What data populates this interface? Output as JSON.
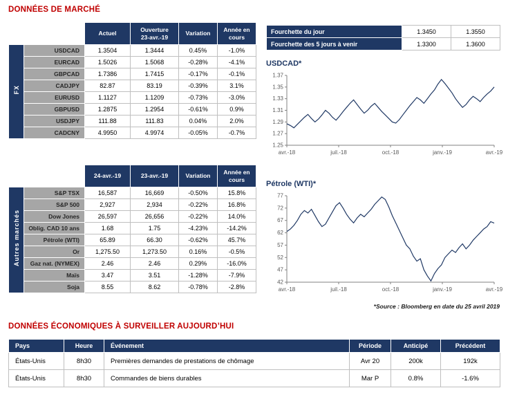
{
  "page": {
    "title_market": "DONNÉES DE MARCHÉ",
    "title_econ": "DONNÉES ÉCONOMIQUES À SURVEILLER AUJOURD’HUI",
    "source_note": "*Source : Bloomberg en date du  25 avril 2019"
  },
  "colors": {
    "positive": "#00A14B",
    "negative": "#FF0000",
    "header_navy": "#1F3864",
    "title_red": "#C00000",
    "label_gray": "#A6A6A6",
    "chart_line": "#1F3864"
  },
  "fx_table": {
    "group_label": "FX",
    "headers": [
      "Actuel",
      "Ouverture\n23-avr.-19",
      "Variation",
      "Année en\ncours"
    ],
    "rows": [
      {
        "label": "USDCAD",
        "actual": "1.3504",
        "open": "1.3444",
        "variation": "0.45%",
        "ytd": "-1.0%"
      },
      {
        "label": "EURCAD",
        "actual": "1.5026",
        "open": "1.5068",
        "variation": "-0.28%",
        "ytd": "-4.1%"
      },
      {
        "label": "GBPCAD",
        "actual": "1.7386",
        "open": "1.7415",
        "variation": "-0.17%",
        "ytd": "-0.1%"
      },
      {
        "label": "CADJPY",
        "actual": "82.87",
        "open": "83.19",
        "variation": "-0.39%",
        "ytd": "3.1%"
      },
      {
        "label": "EURUSD",
        "actual": "1.1127",
        "open": "1.1209",
        "variation": "-0.73%",
        "ytd": "-3.0%"
      },
      {
        "label": "GBPUSD",
        "actual": "1.2875",
        "open": "1.2954",
        "variation": "-0.61%",
        "ytd": "0.9%"
      },
      {
        "label": "USDJPY",
        "actual": "111.88",
        "open": "111.83",
        "variation": "0.04%",
        "ytd": "2.0%"
      },
      {
        "label": "CADCNY",
        "actual": "4.9950",
        "open": "4.9974",
        "variation": "-0.05%",
        "ytd": "-0.7%"
      }
    ]
  },
  "ranges": [
    {
      "label": "Fourchette du jour",
      "low": "1.3450",
      "high": "1.3550"
    },
    {
      "label": "Fourchette des 5 jours à venir",
      "low": "1.3300",
      "high": "1.3600"
    }
  ],
  "markets_table": {
    "group_label": "Autres marchés",
    "headers": [
      "24-avr.-19",
      "23-avr.-19",
      "Variation",
      "Année en\ncours"
    ],
    "rows": [
      {
        "label": "S&P TSX",
        "actual": "16,587",
        "open": "16,669",
        "variation": "-0.50%",
        "ytd": "15.8%"
      },
      {
        "label": "S&P 500",
        "actual": "2,927",
        "open": "2,934",
        "variation": "-0.22%",
        "ytd": "16.8%"
      },
      {
        "label": "Dow Jones",
        "actual": "26,597",
        "open": "26,656",
        "variation": "-0.22%",
        "ytd": "14.0%"
      },
      {
        "label": "Oblig. CAD 10 ans",
        "actual": "1.68",
        "open": "1.75",
        "variation": "-4.23%",
        "ytd": "-14.2%"
      },
      {
        "label": "Pétrole (WTI)",
        "actual": "65.89",
        "open": "66.30",
        "variation": "-0.62%",
        "ytd": "45.7%"
      },
      {
        "label": "Or",
        "actual": "1,275.50",
        "open": "1,273.50",
        "variation": "0.16%",
        "ytd": "-0.5%"
      },
      {
        "label": "Gaz nat. (NYMEX)",
        "actual": "2.46",
        "open": "2.46",
        "variation": "0.29%",
        "ytd": "-16.0%"
      },
      {
        "label": "Maïs",
        "actual": "3.47",
        "open": "3.51",
        "variation": "-1.28%",
        "ytd": "-7.9%"
      },
      {
        "label": "Soja",
        "actual": "8.55",
        "open": "8.62",
        "variation": "-0.78%",
        "ytd": "-2.8%"
      }
    ]
  },
  "econ_table": {
    "headers": [
      "Pays",
      "Heure",
      "Événement",
      "Période",
      "Anticipé",
      "Précédent"
    ],
    "rows": [
      [
        "États-Unis",
        "8h30",
        "Premières demandes de prestations de chômage",
        "Avr 20",
        "200k",
        "192k"
      ],
      [
        "États-Unis",
        "8h30",
        "Commandes de biens durables",
        "Mar P",
        "0.8%",
        "-1.6%"
      ]
    ]
  },
  "chart_data": [
    {
      "type": "line",
      "title": "USDCAD*",
      "xlabel": "",
      "ylabel": "",
      "grid": false,
      "legend": "none",
      "x_ticks": [
        "avr.-18",
        "juil.-18",
        "oct.-18",
        "janv.-19",
        "avr.-19"
      ],
      "y_ticks": [
        1.25,
        1.27,
        1.29,
        1.31,
        1.33,
        1.35,
        1.37
      ],
      "ylim": [
        1.25,
        1.37
      ],
      "values": [
        1.287,
        1.284,
        1.28,
        1.286,
        1.292,
        1.298,
        1.303,
        1.296,
        1.29,
        1.295,
        1.302,
        1.31,
        1.305,
        1.298,
        1.293,
        1.3,
        1.308,
        1.315,
        1.322,
        1.328,
        1.32,
        1.312,
        1.305,
        1.31,
        1.317,
        1.322,
        1.315,
        1.308,
        1.302,
        1.296,
        1.29,
        1.288,
        1.294,
        1.302,
        1.31,
        1.318,
        1.325,
        1.332,
        1.328,
        1.322,
        1.33,
        1.338,
        1.345,
        1.355,
        1.363,
        1.356,
        1.348,
        1.34,
        1.33,
        1.322,
        1.315,
        1.32,
        1.328,
        1.334,
        1.33,
        1.325,
        1.332,
        1.338,
        1.343,
        1.35
      ]
    },
    {
      "type": "line",
      "title": "Pétrole (WTI)*",
      "xlabel": "",
      "ylabel": "",
      "grid": false,
      "legend": "none",
      "x_ticks": [
        "avr.-18",
        "juil.-18",
        "oct.-18",
        "janv.-19",
        "avr.-19"
      ],
      "y_ticks": [
        42,
        47,
        52,
        57,
        62,
        67,
        72,
        77
      ],
      "ylim": [
        42,
        77
      ],
      "values": [
        62.5,
        63.5,
        65.0,
        67.0,
        69.5,
        71.0,
        70.0,
        71.5,
        69.0,
        66.5,
        64.5,
        65.5,
        68.0,
        70.5,
        73.0,
        74.2,
        72.0,
        69.5,
        67.5,
        66.0,
        68.0,
        69.5,
        68.5,
        70.0,
        71.5,
        73.5,
        75.0,
        76.5,
        75.5,
        72.5,
        69.0,
        66.0,
        63.0,
        60.0,
        57.0,
        55.5,
        52.5,
        50.5,
        51.5,
        47.0,
        44.5,
        42.5,
        45.5,
        47.5,
        49.0,
        52.0,
        53.5,
        55.0,
        54.0,
        56.0,
        57.5,
        55.5,
        57.0,
        59.0,
        60.5,
        62.0,
        63.5,
        64.5,
        66.5,
        65.9
      ]
    }
  ]
}
